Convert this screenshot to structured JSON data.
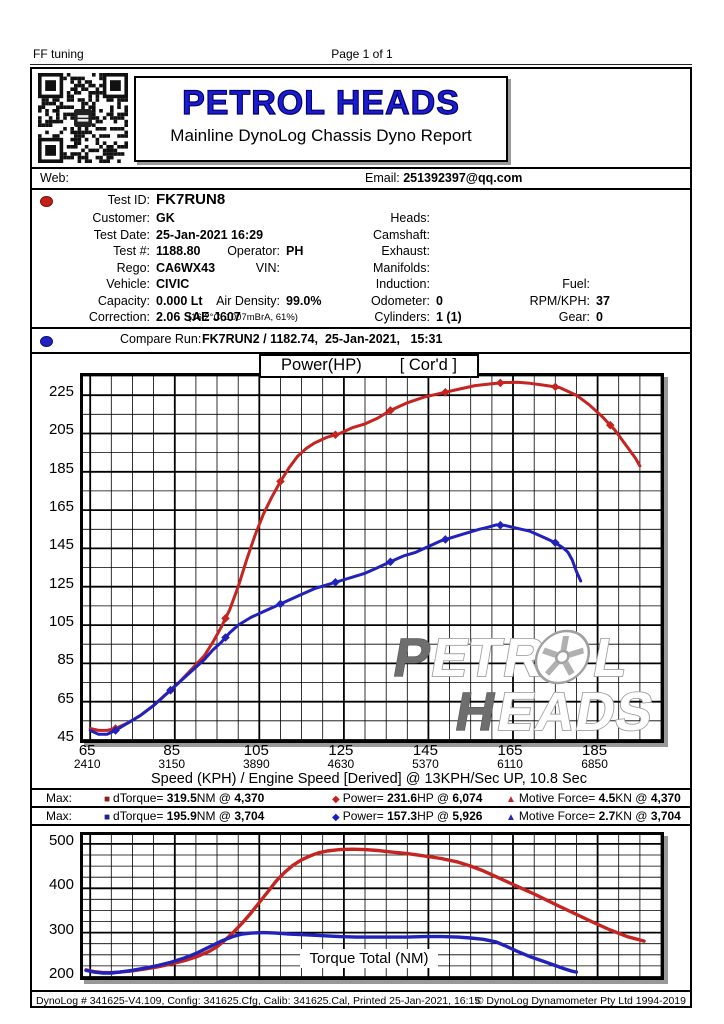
{
  "page": {
    "header_left": "FF tuning",
    "header_center": "Page 1 of 1"
  },
  "branding": {
    "logo_title": "PETROL HEADS",
    "logo_subtitle": "Mainline DynoLog Chassis Dyno Report",
    "logo_color": "#1c1ccd"
  },
  "contact": {
    "web_label": "Web:",
    "email_label": "Email: ",
    "email_value": "251392397@qq.com"
  },
  "info": {
    "test_id": {
      "label": "Test ID:",
      "value": "FK7RUN8"
    },
    "customer": {
      "label": "Customer:",
      "value": "GK"
    },
    "heads": {
      "label": "Heads:",
      "value": ""
    },
    "test_date": {
      "label": "Test Date:",
      "value": "25-Jan-2021 16:29"
    },
    "camshaft": {
      "label": "Camshaft:",
      "value": ""
    },
    "test_num": {
      "label": "Test #:",
      "value": "1188.80"
    },
    "operator": {
      "label": "Operator:",
      "value": "PH"
    },
    "exhaust": {
      "label": "Exhaust:",
      "value": ""
    },
    "rego": {
      "label": "Rego:",
      "value": "CA6WX43"
    },
    "vin": {
      "label": "VIN:",
      "value": ""
    },
    "manifolds": {
      "label": "Manifolds:",
      "value": ""
    },
    "vehicle": {
      "label": "Vehicle:",
      "value": "CIVIC"
    },
    "induction": {
      "label": "Induction:",
      "value": ""
    },
    "fuel": {
      "label": "Fuel:",
      "value": ""
    },
    "capacity": {
      "label": "Capacity:",
      "value": "0.000 Lt"
    },
    "air_density": {
      "label": "Air Density:",
      "value": "99.0%"
    },
    "odometer": {
      "label": "Odometer:",
      "value": "0"
    },
    "rpm_kph": {
      "label": "RPM/KPH:",
      "value": "37"
    },
    "correction": {
      "label": "Correction:",
      "value": "2.06 SAE J607",
      "detail": "(16.2°C, 1007mBrA, 61%)"
    },
    "cylinders": {
      "label": "Cylinders:",
      "value": "1 (1)"
    },
    "gear": {
      "label": "Gear:",
      "value": "0"
    }
  },
  "compare": {
    "label": "Compare Run:",
    "value": "FK7RUN2 / 1182.74,  25-Jan-2021,   15:31"
  },
  "legend": {
    "max_label": "Max:",
    "rows": [
      {
        "items": [
          {
            "glyph": "■",
            "marker_color": "#8d1f1f",
            "label": "dTorque= ",
            "v1": "319.5",
            "unit": "NM @ ",
            "v2": "4,370"
          },
          {
            "glyph": "◆",
            "marker_color": "#cb1d1d",
            "label": "Power= ",
            "v1": "231.6",
            "unit": "HP @ ",
            "v2": "6,074"
          },
          {
            "glyph": "▲",
            "marker_color": "#bf2626",
            "label": "Motive Force= ",
            "v1": "4.5",
            "unit": "KN @ ",
            "v2": "4,370"
          }
        ]
      },
      {
        "items": [
          {
            "glyph": "■",
            "marker_color": "#20208f",
            "label": "dTorque= ",
            "v1": "195.9",
            "unit": "NM @ ",
            "v2": "3,704"
          },
          {
            "glyph": "◆",
            "marker_color": "#1b1bcb",
            "label": "Power= ",
            "v1": "157.3",
            "unit": "HP @ ",
            "v2": "5,926"
          },
          {
            "glyph": "▲",
            "marker_color": "#2828bf",
            "label": "Motive Force= ",
            "v1": "2.7",
            "unit": "KN @ ",
            "v2": "3,704"
          }
        ]
      }
    ]
  },
  "watermark": {
    "line1": "PETROL",
    "line2": "HEADS"
  },
  "footer": {
    "left": "DynoLog # 341625-V4.109, Config: 341625.Cfg, Calib: 341625.Cal, Printed 25-Jan-2021, 16:15",
    "right": "© DynoLog Dynamometer Pty Ltd 1994-2019"
  },
  "chart_data": [
    {
      "type": "line",
      "name": "power-chart",
      "title": "Power(HP)",
      "title_suffix": "[ Cor'd ]",
      "xlabel": "Speed (KPH) / Engine Speed [Derived] @ 13KPH/Sec UP, 10.8 Sec",
      "xlim": [
        63.3,
        200
      ],
      "ylim": [
        45,
        235
      ],
      "x_ticks_kph": [
        65,
        85,
        105,
        125,
        145,
        165,
        185
      ],
      "x_ticks_rpm": [
        2410,
        3150,
        3890,
        4630,
        5370,
        6110,
        6850
      ],
      "y_ticks": [
        45,
        65,
        85,
        105,
        125,
        145,
        165,
        185,
        205,
        225
      ],
      "x_minor_step": 5,
      "x_major_step": 20,
      "y_minor_step": 10,
      "y_major_step": 20,
      "grid": true,
      "legend_position": "below",
      "series": [
        {
          "name": "FK7RUN8 Power (HP)",
          "color": "#c62420",
          "marker_x": [
            71,
            84,
            97,
            110,
            123,
            136,
            149,
            162,
            175,
            188
          ],
          "points": [
            [
              65,
              51
            ],
            [
              67,
              50
            ],
            [
              69,
              50
            ],
            [
              71,
              51
            ],
            [
              74,
              54
            ],
            [
              77,
              58
            ],
            [
              80,
              63
            ],
            [
              83,
              69
            ],
            [
              86,
              75
            ],
            [
              89,
              82
            ],
            [
              92,
              89
            ],
            [
              94,
              96
            ],
            [
              96,
              104
            ],
            [
              98,
              113
            ],
            [
              100,
              125
            ],
            [
              102,
              139
            ],
            [
              104,
              152
            ],
            [
              106,
              163
            ],
            [
              108,
              172
            ],
            [
              110,
              180
            ],
            [
              112,
              187
            ],
            [
              114,
              193
            ],
            [
              116,
              197
            ],
            [
              118,
              200
            ],
            [
              121,
              203
            ],
            [
              124,
              205
            ],
            [
              127,
              208
            ],
            [
              130,
              210
            ],
            [
              133,
              213
            ],
            [
              136,
              217
            ],
            [
              140,
              221
            ],
            [
              144,
              224
            ],
            [
              148,
              226
            ],
            [
              152,
              228
            ],
            [
              156,
              230
            ],
            [
              160,
              231
            ],
            [
              163,
              231.6
            ],
            [
              166,
              231.7
            ],
            [
              169,
              231.2
            ],
            [
              172,
              230.3
            ],
            [
              176,
              229
            ],
            [
              180,
              225
            ],
            [
              183,
              220
            ],
            [
              186,
              214
            ],
            [
              189,
              207
            ],
            [
              192,
              198
            ],
            [
              194,
              192
            ],
            [
              195,
              188
            ]
          ]
        },
        {
          "name": "FK7RUN2 Power (HP)",
          "color": "#2121bb",
          "marker_x": [
            71,
            84,
            97,
            110,
            123,
            136,
            149,
            162,
            175
          ],
          "points": [
            [
              65,
              50
            ],
            [
              67,
              48
            ],
            [
              69,
              48
            ],
            [
              71,
              50
            ],
            [
              74,
              54
            ],
            [
              77,
              58
            ],
            [
              80,
              63
            ],
            [
              83,
              69
            ],
            [
              86,
              75
            ],
            [
              89,
              81
            ],
            [
              92,
              87
            ],
            [
              94,
              92
            ],
            [
              96,
              96
            ],
            [
              98,
              101
            ],
            [
              100,
              105
            ],
            [
              103,
              109
            ],
            [
              106,
              112
            ],
            [
              109,
              115
            ],
            [
              112,
              118
            ],
            [
              115,
              121
            ],
            [
              118,
              124
            ],
            [
              121,
              126
            ],
            [
              124,
              128
            ],
            [
              127,
              130
            ],
            [
              130,
              132
            ],
            [
              133,
              135
            ],
            [
              136,
              138
            ],
            [
              139,
              141
            ],
            [
              142,
              143
            ],
            [
              145,
              146
            ],
            [
              148,
              149
            ],
            [
              151,
              151
            ],
            [
              154,
              153
            ],
            [
              157,
              155
            ],
            [
              159,
              156
            ],
            [
              161,
              157.3
            ],
            [
              163,
              157
            ],
            [
              165,
              156
            ],
            [
              167,
              155
            ],
            [
              169,
              154
            ],
            [
              171,
              152
            ],
            [
              173,
              150
            ],
            [
              175,
              148
            ],
            [
              177,
              145
            ],
            [
              178,
              143
            ],
            [
              179,
              139
            ],
            [
              180,
              133
            ],
            [
              181,
              128
            ]
          ]
        }
      ]
    },
    {
      "type": "line",
      "name": "torque-chart",
      "inner_label": "Torque Total (NM)",
      "xlim": [
        63.3,
        200
      ],
      "ylim": [
        200,
        520
      ],
      "y_ticks": [
        200,
        300,
        400,
        500
      ],
      "x_minor_step": 5,
      "x_major_step": 20,
      "y_minor_step": 25,
      "y_major_step": 100,
      "grid": true,
      "series": [
        {
          "name": "FK7RUN8 Torque Total (NM)",
          "color": "#c62420",
          "marker_x": [],
          "points": [
            [
              64,
              216
            ],
            [
              66,
              212
            ],
            [
              68,
              210
            ],
            [
              70,
              210
            ],
            [
              72,
              211
            ],
            [
              75,
              214
            ],
            [
              78,
              218
            ],
            [
              81,
              223
            ],
            [
              84,
              229
            ],
            [
              87,
              236
            ],
            [
              90,
              245
            ],
            [
              93,
              257
            ],
            [
              95,
              268
            ],
            [
              97,
              284
            ],
            [
              99,
              302
            ],
            [
              101,
              322
            ],
            [
              103,
              344
            ],
            [
              105,
              368
            ],
            [
              107,
              392
            ],
            [
              109,
              416
            ],
            [
              111,
              436
            ],
            [
              113,
              452
            ],
            [
              115,
              464
            ],
            [
              117,
              473
            ],
            [
              119,
              480
            ],
            [
              121,
              484
            ],
            [
              124,
              487
            ],
            [
              127,
              488
            ],
            [
              130,
              487
            ],
            [
              133,
              485
            ],
            [
              136,
              482
            ],
            [
              140,
              478
            ],
            [
              144,
              473
            ],
            [
              148,
              467
            ],
            [
              152,
              459
            ],
            [
              155,
              450
            ],
            [
              158,
              439
            ],
            [
              161,
              426
            ],
            [
              164,
              413
            ],
            [
              167,
              400
            ],
            [
              170,
              387
            ],
            [
              173,
              373
            ],
            [
              176,
              359
            ],
            [
              180,
              341
            ],
            [
              184,
              323
            ],
            [
              188,
              306
            ],
            [
              192,
              291
            ],
            [
              196,
              281
            ]
          ]
        },
        {
          "name": "FK7RUN2 Torque Total (NM)",
          "color": "#2121bb",
          "marker_x": [],
          "points": [
            [
              64,
              215
            ],
            [
              66,
              211
            ],
            [
              68,
              209
            ],
            [
              70,
              209
            ],
            [
              72,
              211
            ],
            [
              75,
              215
            ],
            [
              78,
              220
            ],
            [
              81,
              226
            ],
            [
              84,
              233
            ],
            [
              87,
              242
            ],
            [
              90,
              253
            ],
            [
              93,
              267
            ],
            [
              96,
              281
            ],
            [
              99,
              292
            ],
            [
              101,
              297
            ],
            [
              103,
              299
            ],
            [
              106,
              300
            ],
            [
              109,
              299
            ],
            [
              112,
              297
            ],
            [
              116,
              295
            ],
            [
              120,
              293
            ],
            [
              124,
              291
            ],
            [
              128,
              290
            ],
            [
              132,
              290
            ],
            [
              136,
              290
            ],
            [
              140,
              290
            ],
            [
              144,
              291
            ],
            [
              148,
              291
            ],
            [
              152,
              290
            ],
            [
              155,
              288
            ],
            [
              158,
              285
            ],
            [
              161,
              279
            ],
            [
              163,
              271
            ],
            [
              166,
              258
            ],
            [
              169,
              246
            ],
            [
              172,
              236
            ],
            [
              175,
              226
            ],
            [
              177,
              219
            ],
            [
              179,
              213
            ],
            [
              180,
              211
            ]
          ]
        }
      ]
    }
  ]
}
